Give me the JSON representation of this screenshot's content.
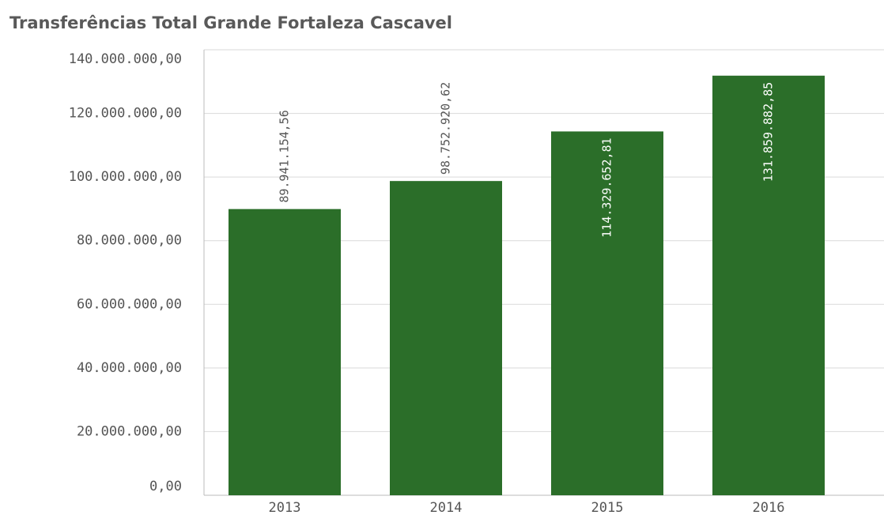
{
  "chart_data": {
    "type": "bar",
    "title": "Transferências Total Grande Fortaleza Cascavel",
    "categories": [
      "2013",
      "2014",
      "2015",
      "2016"
    ],
    "values": [
      89941154.56,
      98752920.62,
      114329652.81,
      131859882.85
    ],
    "value_labels": [
      "89.941.154,56",
      "98.752.920,62",
      "114.329.652,81",
      "131.859.882,85"
    ],
    "color": "#2b6e29",
    "ylim": [
      0,
      140000000
    ],
    "yticks": [
      {
        "value": 0,
        "label": "0,00"
      },
      {
        "value": 20000000,
        "label": "20.000.000,00"
      },
      {
        "value": 40000000,
        "label": "40.000.000,00"
      },
      {
        "value": 60000000,
        "label": "60.000.000,00"
      },
      {
        "value": 80000000,
        "label": "80.000.000,00"
      },
      {
        "value": 100000000,
        "label": "100.000.000,00"
      },
      {
        "value": 120000000,
        "label": "120.000.000,00"
      },
      {
        "value": 140000000,
        "label": "140.000.000,00"
      }
    ],
    "grid": true
  }
}
